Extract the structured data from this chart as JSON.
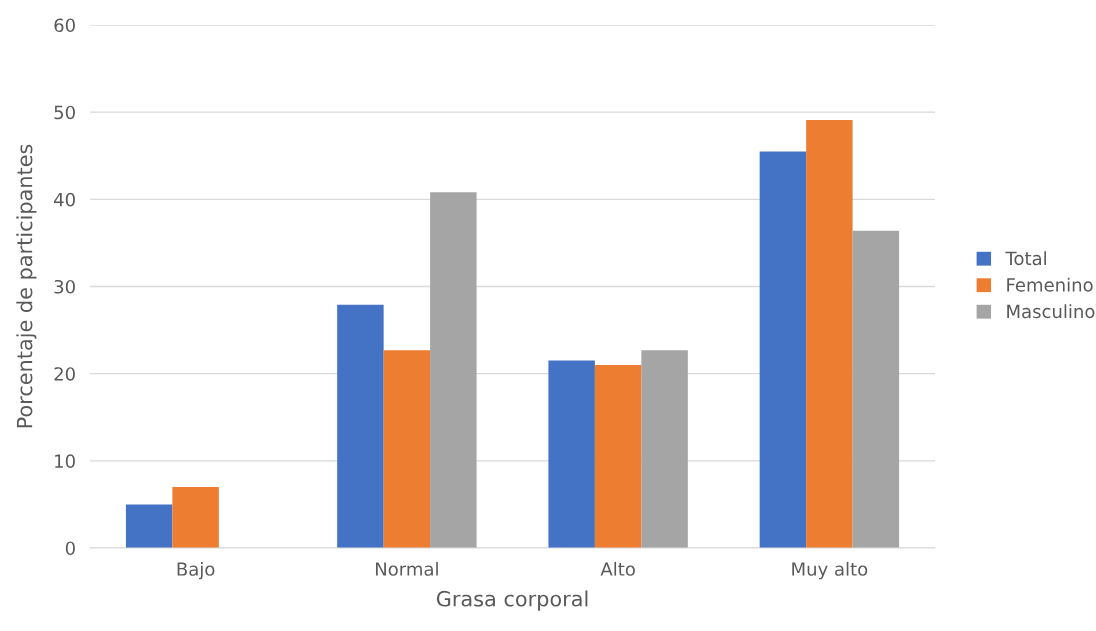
{
  "chart_data": {
    "type": "bar",
    "xlabel": "Grasa corporal",
    "ylabel": "Porcentaje de participantes",
    "categories": [
      "Bajo",
      "Normal",
      "Alto",
      "Muy alto"
    ],
    "series": [
      {
        "name": "Total",
        "color": "#4472c4",
        "values": [
          5.0,
          27.9,
          21.5,
          45.5
        ]
      },
      {
        "name": "Femenino",
        "color": "#ed7d31",
        "values": [
          7.0,
          22.7,
          21.0,
          49.1
        ]
      },
      {
        "name": "Masculino",
        "color": "#a5a5a5",
        "values": [
          0,
          40.8,
          22.7,
          36.4
        ]
      }
    ],
    "ylim": [
      0,
      60
    ],
    "yticks": [
      0,
      10,
      20,
      30,
      40,
      50,
      60
    ],
    "grid": "y",
    "legend": "right"
  }
}
